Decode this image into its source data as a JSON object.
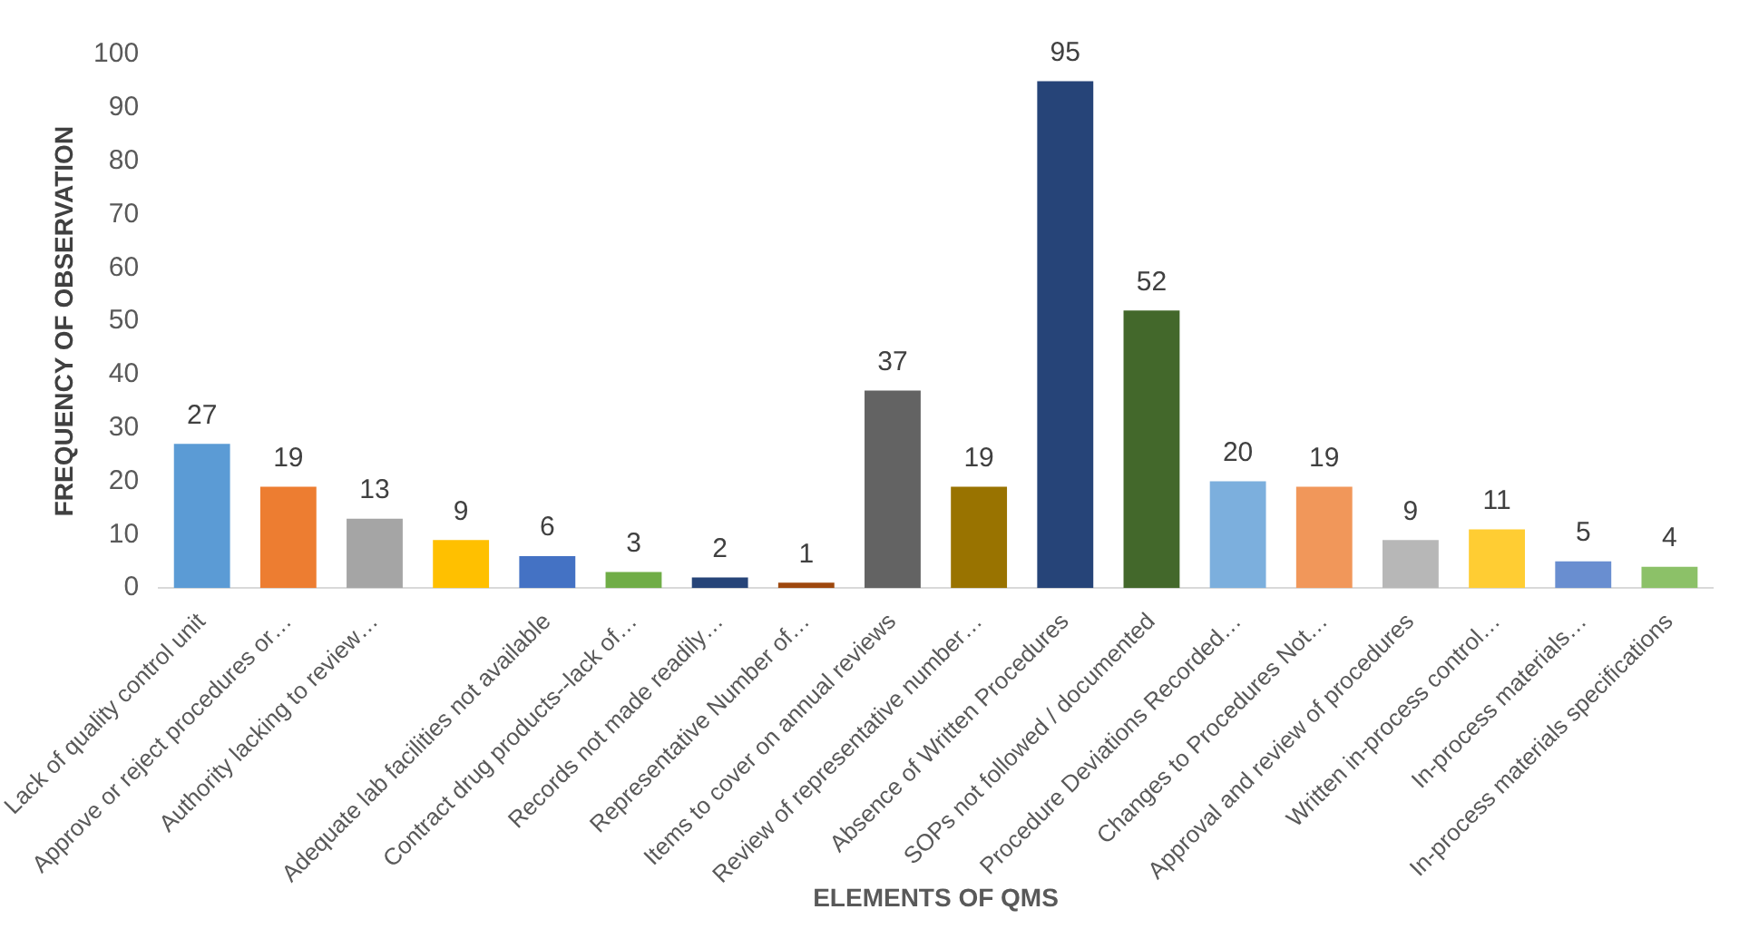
{
  "chart_data": {
    "type": "bar",
    "xlabel": "ELEMENTS OF QMS",
    "ylabel": "FREQUENCY OF OBSERVATION",
    "categories": [
      "Lack of quality control unit",
      "Approve or reject procedures or…",
      "Authority lacking to review…",
      null,
      "Adequate lab facilities not available",
      "Contract drug products--lack of…",
      "Records not made readily…",
      "Representative Number of…",
      "Items to cover on annual reviews",
      "Review of representative number…",
      "Absence of Written Procedures",
      "SOPs not followed / documented",
      "Procedure Deviations Recorded…",
      "Changes to Procedures Not…",
      "Approval and review of procedures",
      "Written in-process control…",
      "In-process materials…",
      "In-process materials specifications"
    ],
    "values": [
      27,
      19,
      13,
      9,
      6,
      3,
      2,
      1,
      37,
      19,
      95,
      52,
      20,
      19,
      9,
      11,
      5,
      4
    ],
    "colors": [
      "#5b9bd5",
      "#ed7d31",
      "#a5a5a5",
      "#ffc000",
      "#4472c4",
      "#70ad47",
      "#264478",
      "#9e480e",
      "#636363",
      "#997300",
      "#264478",
      "#43682b",
      "#7cafdd",
      "#f1975a",
      "#b7b7b7",
      "#ffcd33",
      "#698ed0",
      "#8cc168"
    ],
    "ylim": [
      0,
      100
    ],
    "yticks": [
      0,
      10,
      20,
      30,
      40,
      50,
      60,
      70,
      80,
      90,
      100
    ],
    "grid": false,
    "data_labels": true,
    "legend": false
  }
}
